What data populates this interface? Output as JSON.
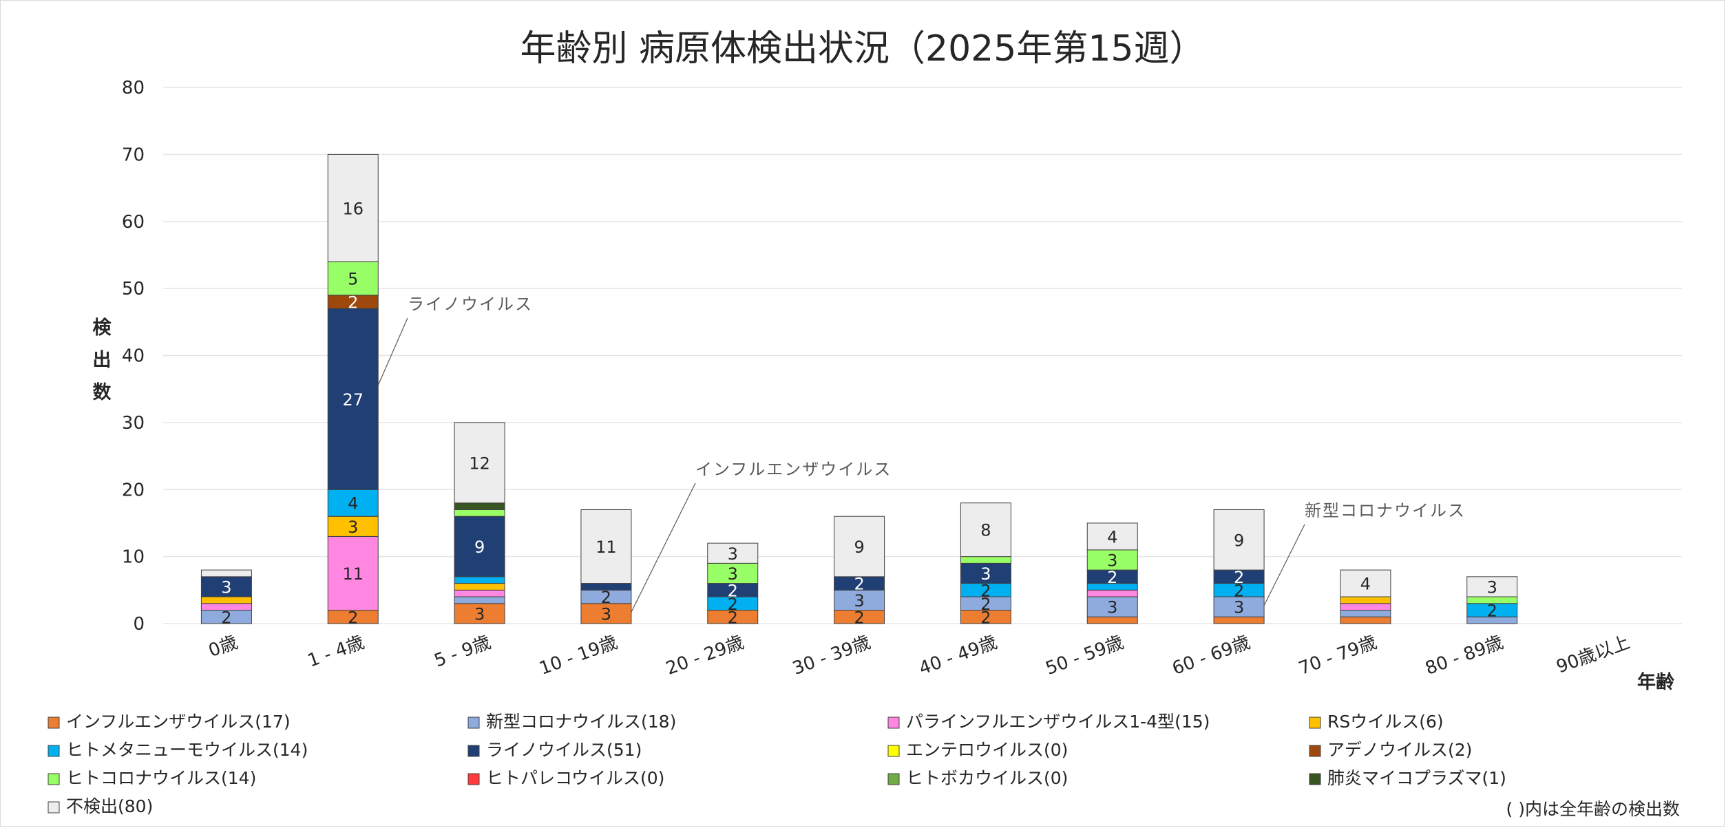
{
  "chart_data": {
    "type": "bar",
    "stacked": true,
    "title": "年齢別 病原体検出状況（2025年第15週）",
    "xlabel": "年齢",
    "ylabel": "検出数",
    "ylim": [
      0,
      80
    ],
    "yticks": [
      0,
      10,
      20,
      30,
      40,
      50,
      60,
      70,
      80
    ],
    "grid": true,
    "legend_position": "bottom",
    "categories": [
      "0歳",
      "1 - 4歳",
      "5 - 9歳",
      "10 - 19歳",
      "20 - 29歳",
      "30 - 39歳",
      "40 - 49歳",
      "50 - 59歳",
      "60 - 69歳",
      "70 - 79歳",
      "80 - 89歳",
      "90歳以上"
    ],
    "series": [
      {
        "name": "インフルエンザウイルス",
        "total": "(17)",
        "color": "#ed7d31",
        "values": [
          0,
          2,
          3,
          3,
          2,
          2,
          2,
          1,
          1,
          1,
          0,
          0
        ]
      },
      {
        "name": "新型コロナウイルス",
        "total": "(18)",
        "color": "#8faadc",
        "values": [
          2,
          0,
          1,
          2,
          0,
          3,
          2,
          3,
          3,
          1,
          1,
          0
        ]
      },
      {
        "name": "パラインフルエンザウイルス1-4型",
        "total": "(15)",
        "color": "#ff86e1",
        "values": [
          1,
          11,
          1,
          0,
          0,
          0,
          0,
          1,
          0,
          1,
          0,
          0
        ]
      },
      {
        "name": "RSウイルス",
        "total": "(6)",
        "color": "#ffc000",
        "values": [
          1,
          3,
          1,
          0,
          0,
          0,
          0,
          0,
          0,
          1,
          0,
          0
        ]
      },
      {
        "name": "ヒトメタニューモウイルス",
        "total": "(14)",
        "color": "#00b0f0",
        "values": [
          0,
          4,
          1,
          0,
          2,
          0,
          2,
          1,
          2,
          0,
          2,
          0
        ]
      },
      {
        "name": "ライノウイルス",
        "total": "(51)",
        "color": "#203f74",
        "values": [
          3,
          27,
          9,
          1,
          2,
          2,
          3,
          2,
          2,
          0,
          0,
          0
        ]
      },
      {
        "name": "エンテロウイルス",
        "total": "(0)",
        "color": "#ffff00",
        "values": [
          0,
          0,
          0,
          0,
          0,
          0,
          0,
          0,
          0,
          0,
          0,
          0
        ]
      },
      {
        "name": "アデノウイルス",
        "total": "(2)",
        "color": "#9e480e",
        "values": [
          0,
          2,
          0,
          0,
          0,
          0,
          0,
          0,
          0,
          0,
          0,
          0
        ]
      },
      {
        "name": "ヒトコロナウイルス",
        "total": "(14)",
        "color": "#99ff66",
        "values": [
          0,
          5,
          1,
          0,
          3,
          0,
          1,
          3,
          0,
          0,
          1,
          0
        ]
      },
      {
        "name": "ヒトパレコウイルス",
        "total": "(0)",
        "color": "#ff3b3b",
        "values": [
          0,
          0,
          0,
          0,
          0,
          0,
          0,
          0,
          0,
          0,
          0,
          0
        ]
      },
      {
        "name": "ヒトボカウイルス",
        "total": "(0)",
        "color": "#70ad47",
        "values": [
          0,
          0,
          0,
          0,
          0,
          0,
          0,
          0,
          0,
          0,
          0,
          0
        ]
      },
      {
        "name": "肺炎マイコプラズマ",
        "total": "(1)",
        "color": "#375623",
        "values": [
          0,
          0,
          1,
          0,
          0,
          0,
          0,
          0,
          0,
          0,
          0,
          0
        ]
      },
      {
        "name": "不検出",
        "total": "(80)",
        "color": "#ededed",
        "values": [
          1,
          16,
          12,
          11,
          3,
          9,
          8,
          4,
          9,
          4,
          3,
          0
        ]
      }
    ],
    "data_labels": [
      {
        "category": "0歳",
        "series": "新型コロナウイルス",
        "text": "2"
      },
      {
        "category": "0歳",
        "series": "ライノウイルス",
        "text": "3"
      },
      {
        "category": "1 - 4歳",
        "series": "インフルエンザウイルス",
        "text": "2"
      },
      {
        "category": "1 - 4歳",
        "series": "パラインフルエンザウイルス1-4型",
        "text": "11"
      },
      {
        "category": "1 - 4歳",
        "series": "RSウイルス",
        "text": "3"
      },
      {
        "category": "1 - 4歳",
        "series": "ヒトメタニューモウイルス",
        "text": "4"
      },
      {
        "category": "1 - 4歳",
        "series": "ライノウイルス",
        "text": "27"
      },
      {
        "category": "1 - 4歳",
        "series": "アデノウイルス",
        "text": "2"
      },
      {
        "category": "1 - 4歳",
        "series": "ヒトコロナウイルス",
        "text": "5"
      },
      {
        "category": "1 - 4歳",
        "series": "不検出",
        "text": "16"
      },
      {
        "category": "5 - 9歳",
        "series": "インフルエンザウイルス",
        "text": "3"
      },
      {
        "category": "5 - 9歳",
        "series": "ライノウイルス",
        "text": "9"
      },
      {
        "category": "5 - 9歳",
        "series": "不検出",
        "text": "12"
      },
      {
        "category": "10 - 19歳",
        "series": "インフルエンザウイルス",
        "text": "3"
      },
      {
        "category": "10 - 19歳",
        "series": "新型コロナウイルス",
        "text": "2"
      },
      {
        "category": "10 - 19歳",
        "series": "不検出",
        "text": "11"
      },
      {
        "category": "20 - 29歳",
        "series": "インフルエンザウイルス",
        "text": "2"
      },
      {
        "category": "20 - 29歳",
        "series": "ヒトメタニューモウイルス",
        "text": "2"
      },
      {
        "category": "20 - 29歳",
        "series": "ライノウイルス",
        "text": "2"
      },
      {
        "category": "20 - 29歳",
        "series": "ヒトコロナウイルス",
        "text": "3"
      },
      {
        "category": "20 - 29歳",
        "series": "不検出",
        "text": "3"
      },
      {
        "category": "30 - 39歳",
        "series": "インフルエンザウイルス",
        "text": "2"
      },
      {
        "category": "30 - 39歳",
        "series": "新型コロナウイルス",
        "text": "3"
      },
      {
        "category": "30 - 39歳",
        "series": "ライノウイルス",
        "text": "2"
      },
      {
        "category": "30 - 39歳",
        "series": "不検出",
        "text": "9"
      },
      {
        "category": "40 - 49歳",
        "series": "インフルエンザウイルス",
        "text": "2"
      },
      {
        "category": "40 - 49歳",
        "series": "新型コロナウイルス",
        "text": "2"
      },
      {
        "category": "40 - 49歳",
        "series": "ヒトメタニューモウイルス",
        "text": "2"
      },
      {
        "category": "40 - 49歳",
        "series": "ライノウイルス",
        "text": "3"
      },
      {
        "category": "40 - 49歳",
        "series": "不検出",
        "text": "8"
      },
      {
        "category": "50 - 59歳",
        "series": "新型コロナウイルス",
        "text": "3"
      },
      {
        "category": "50 - 59歳",
        "series": "ライノウイルス",
        "text": "2"
      },
      {
        "category": "50 - 59歳",
        "series": "ヒトコロナウイルス",
        "text": "3"
      },
      {
        "category": "50 - 59歳",
        "series": "不検出",
        "text": "4"
      },
      {
        "category": "60 - 69歳",
        "series": "新型コロナウイルス",
        "text": "3"
      },
      {
        "category": "60 - 69歳",
        "series": "ヒトメタニューモウイルス",
        "text": "2"
      },
      {
        "category": "60 - 69歳",
        "series": "ライノウイルス",
        "text": "2"
      },
      {
        "category": "60 - 69歳",
        "series": "不検出",
        "text": "9"
      },
      {
        "category": "70 - 79歳",
        "series": "不検出",
        "text": "4"
      },
      {
        "category": "80 - 89歳",
        "series": "ヒトメタニューモウイルス",
        "text": "2"
      },
      {
        "category": "80 - 89歳",
        "series": "不検出",
        "text": "3"
      }
    ],
    "annotations": [
      {
        "text": "ライノウイルス",
        "category": "1 - 4歳",
        "series": "ライノウイルス"
      },
      {
        "text": "インフルエンザウイルス",
        "category": "10 - 19歳",
        "series": "インフルエンザウイルス"
      },
      {
        "text": "新型コロナウイルス",
        "category": "60 - 69歳",
        "series": "新型コロナウイルス"
      }
    ],
    "footnote": "( )内は全年齢の検出数"
  }
}
